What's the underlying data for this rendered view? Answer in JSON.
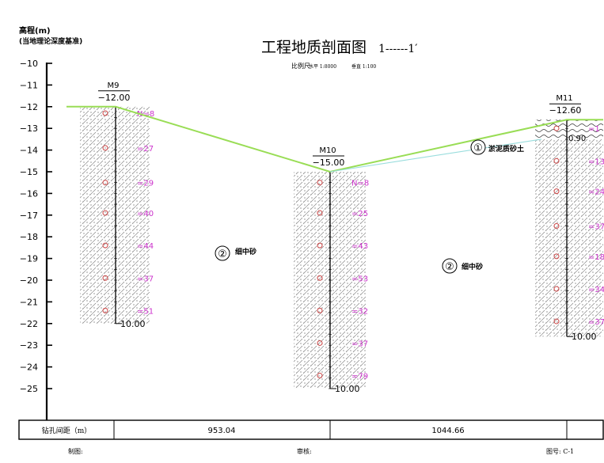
{
  "header": {
    "elev_title": "高程(m)",
    "elev_subtitle": "(当地理论深度基准)",
    "title": "工程地质剖面图",
    "section_id": "1------1′",
    "scale_label": "比例尺",
    "scale_h": "水平 1:8000",
    "scale_v": "垂直 1:100"
  },
  "axis": {
    "ticks": [
      {
        "value": -10,
        "label": "−10"
      },
      {
        "value": -11,
        "label": "−11"
      },
      {
        "value": -12,
        "label": "−12"
      },
      {
        "value": -13,
        "label": "−13"
      },
      {
        "value": -14,
        "label": "−14"
      },
      {
        "value": -15,
        "label": "−15"
      },
      {
        "value": -16,
        "label": "−16"
      },
      {
        "value": -17,
        "label": "−17"
      },
      {
        "value": -18,
        "label": "−18"
      },
      {
        "value": -19,
        "label": "−19"
      },
      {
        "value": -20,
        "label": "−20"
      },
      {
        "value": -21,
        "label": "−21"
      },
      {
        "value": -22,
        "label": "−22"
      },
      {
        "value": -23,
        "label": "−23"
      },
      {
        "value": -24,
        "label": "−24"
      },
      {
        "value": -25,
        "label": "−25"
      }
    ]
  },
  "boreholes": [
    {
      "name": "M9",
      "top_elev_label": "−12.00",
      "top": -12.0,
      "bottom": -22.0,
      "depth_label": "10.00",
      "spt": [
        {
          "elev": -12.3,
          "label": "N=8"
        },
        {
          "elev": -13.9,
          "label": "=27"
        },
        {
          "elev": -15.5,
          "label": "=29"
        },
        {
          "elev": -16.9,
          "label": "=40"
        },
        {
          "elev": -18.4,
          "label": "=44"
        },
        {
          "elev": -19.9,
          "label": "=37"
        },
        {
          "elev": -21.4,
          "label": "=51"
        }
      ]
    },
    {
      "name": "M10",
      "top_elev_label": "−15.00",
      "top": -15.0,
      "bottom": -25.0,
      "depth_label": "10.00",
      "spt": [
        {
          "elev": -15.5,
          "label": "N=8"
        },
        {
          "elev": -16.9,
          "label": "=25"
        },
        {
          "elev": -18.4,
          "label": "=43"
        },
        {
          "elev": -19.9,
          "label": "=53"
        },
        {
          "elev": -21.4,
          "label": "=32"
        },
        {
          "elev": -22.9,
          "label": "=37"
        },
        {
          "elev": -24.4,
          "label": "=79"
        }
      ]
    },
    {
      "name": "M11",
      "top_elev_label": "−12.60",
      "top": -12.6,
      "bottom": -22.6,
      "depth_label": "10.00",
      "layer1_thickness": "0.90",
      "spt": [
        {
          "elev": -13.0,
          "label": "=1"
        },
        {
          "elev": -14.5,
          "label": "=13"
        },
        {
          "elev": -15.9,
          "label": "=24"
        },
        {
          "elev": -17.5,
          "label": "=37"
        },
        {
          "elev": -18.9,
          "label": "=18"
        },
        {
          "elev": -20.4,
          "label": "=34"
        },
        {
          "elev": -21.9,
          "label": "=37"
        }
      ]
    }
  ],
  "layers": [
    {
      "num": "①",
      "name": "淤泥质砂土"
    },
    {
      "num": "②",
      "name": "细中砂"
    },
    {
      "num": "②",
      "name": "细中砂"
    }
  ],
  "table": {
    "header": "钻孔间距（m）",
    "spacings": [
      "953.04",
      "1044.66"
    ]
  },
  "footer": {
    "drawn": "制图:",
    "review": "审核:",
    "drawing_no": "图号: C-1"
  },
  "colors": {
    "ground_line": "#99dd55",
    "layer_boundary": "#99dddd",
    "spt_text": "#cc33cc",
    "axis": "#000000"
  }
}
